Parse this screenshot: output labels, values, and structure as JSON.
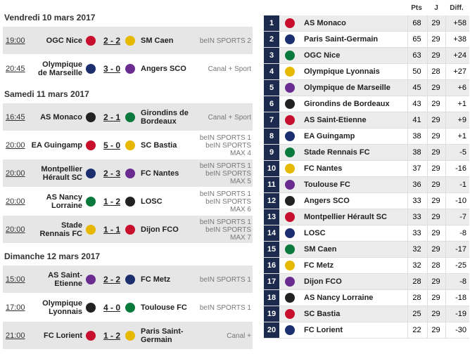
{
  "fixtures": [
    {
      "day": "Vendredi 10 mars 2017",
      "matches": [
        {
          "time": "19:00",
          "home": "OGC Nice",
          "score": "2 - 2",
          "away": "SM Caen",
          "channel": "beIN SPORTS 2"
        },
        {
          "time": "20:45",
          "home": "Olympique\nde Marseille",
          "score": "3 - 0",
          "away": "Angers SCO",
          "channel": "Canal + Sport"
        }
      ]
    },
    {
      "day": "Samedi 11 mars 2017",
      "matches": [
        {
          "time": "16:45",
          "home": "AS Monaco",
          "score": "2 - 1",
          "away": "Girondins de\nBordeaux",
          "channel": "Canal + Sport"
        },
        {
          "time": "20:00",
          "home": "EA Guingamp",
          "score": "5 - 0",
          "away": "SC Bastia",
          "channel": "beIN SPORTS 1\nbeIN SPORTS\nMAX 4"
        },
        {
          "time": "20:00",
          "home": "Montpellier\nHérault SC",
          "score": "2 - 3",
          "away": "FC Nantes",
          "channel": "beIN SPORTS 1\nbeIN SPORTS\nMAX 5"
        },
        {
          "time": "20:00",
          "home": "AS Nancy\nLorraine",
          "score": "1 - 2",
          "away": "LOSC",
          "channel": "beIN SPORTS 1\nbeIN SPORTS\nMAX 6"
        },
        {
          "time": "20:00",
          "home": "Stade\nRennais FC",
          "score": "1 - 1",
          "away": "Dijon FCO",
          "channel": "beIN SPORTS 1\nbeIN SPORTS\nMAX 7"
        }
      ]
    },
    {
      "day": "Dimanche 12 mars 2017",
      "matches": [
        {
          "time": "15:00",
          "home": "AS Saint-\nEtienne",
          "score": "2 - 2",
          "away": "FC Metz",
          "channel": "beIN SPORTS 1"
        },
        {
          "time": "17:00",
          "home": "Olympique\nLyonnais",
          "score": "4 - 0",
          "away": "Toulouse FC",
          "channel": "beIN SPORTS 1"
        },
        {
          "time": "21:00",
          "home": "FC Lorient",
          "score": "1 - 2",
          "away": "Paris Saint-\nGermain",
          "channel": "Canal +"
        }
      ]
    }
  ],
  "standings": {
    "headers": [
      "Pts",
      "J",
      "Diff."
    ],
    "rows": [
      [
        1,
        "AS Monaco",
        68,
        29,
        "+58"
      ],
      [
        2,
        "Paris Saint-Germain",
        65,
        29,
        "+38"
      ],
      [
        3,
        "OGC Nice",
        63,
        29,
        "+24"
      ],
      [
        4,
        "Olympique Lyonnais",
        50,
        28,
        "+27"
      ],
      [
        5,
        "Olympique de Marseille",
        45,
        29,
        "+6"
      ],
      [
        6,
        "Girondins de Bordeaux",
        43,
        29,
        "+1"
      ],
      [
        7,
        "AS Saint-Etienne",
        41,
        29,
        "+9"
      ],
      [
        8,
        "EA Guingamp",
        38,
        29,
        "+1"
      ],
      [
        9,
        "Stade Rennais FC",
        38,
        29,
        "-5"
      ],
      [
        10,
        "FC Nantes",
        37,
        29,
        "-16"
      ],
      [
        11,
        "Toulouse FC",
        36,
        29,
        "-1"
      ],
      [
        12,
        "Angers SCO",
        33,
        29,
        "-10"
      ],
      [
        13,
        "Montpellier Hérault SC",
        33,
        29,
        "-7"
      ],
      [
        14,
        "LOSC",
        33,
        29,
        "-8"
      ],
      [
        15,
        "SM Caen",
        32,
        29,
        "-17"
      ],
      [
        16,
        "FC Metz",
        32,
        28,
        "-25"
      ],
      [
        17,
        "Dijon FCO",
        28,
        29,
        "-8"
      ],
      [
        18,
        "AS Nancy Lorraine",
        28,
        29,
        "-18"
      ],
      [
        19,
        "SC Bastia",
        25,
        29,
        "-19"
      ],
      [
        20,
        "FC Lorient",
        22,
        29,
        "-30"
      ]
    ]
  }
}
